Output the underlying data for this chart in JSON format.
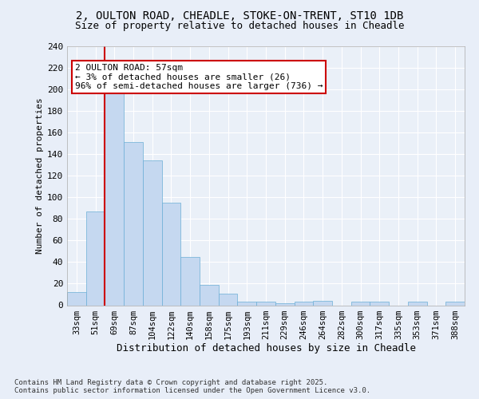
{
  "title1": "2, OULTON ROAD, CHEADLE, STOKE-ON-TRENT, ST10 1DB",
  "title2": "Size of property relative to detached houses in Cheadle",
  "xlabel": "Distribution of detached houses by size in Cheadle",
  "ylabel": "Number of detached properties",
  "categories": [
    "33sqm",
    "51sqm",
    "69sqm",
    "87sqm",
    "104sqm",
    "122sqm",
    "140sqm",
    "158sqm",
    "175sqm",
    "193sqm",
    "211sqm",
    "229sqm",
    "246sqm",
    "264sqm",
    "282sqm",
    "300sqm",
    "317sqm",
    "335sqm",
    "353sqm",
    "371sqm",
    "388sqm"
  ],
  "values": [
    12,
    87,
    196,
    151,
    134,
    95,
    45,
    19,
    11,
    3,
    3,
    2,
    3,
    4,
    0,
    3,
    3,
    0,
    3,
    0,
    3
  ],
  "bar_color": "#c5d8f0",
  "bar_edge_color": "#6baed6",
  "annotation_text": "2 OULTON ROAD: 57sqm\n← 3% of detached houses are smaller (26)\n96% of semi-detached houses are larger (736) →",
  "annotation_box_color": "#ffffff",
  "annotation_box_edge_color": "#cc0000",
  "footer_text": "Contains HM Land Registry data © Crown copyright and database right 2025.\nContains public sector information licensed under the Open Government Licence v3.0.",
  "background_color": "#e8eef8",
  "plot_background_color": "#eaf0f8",
  "grid_color": "#ffffff",
  "red_line_color": "#cc0000",
  "ylim": [
    0,
    240
  ],
  "yticks": [
    0,
    20,
    40,
    60,
    80,
    100,
    120,
    140,
    160,
    180,
    200,
    220,
    240
  ]
}
